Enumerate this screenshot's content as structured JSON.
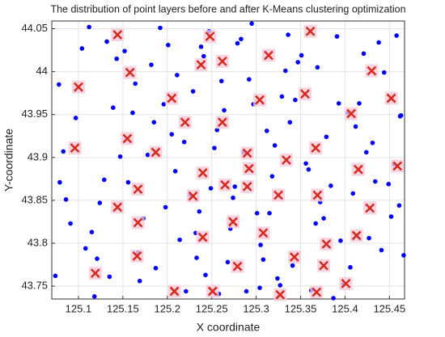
{
  "chart_data": {
    "type": "scatter",
    "title": "The distribution of point layers before and after K-Means clustering optimization",
    "xlabel": "X coordinate",
    "ylabel": "Y-coordinate",
    "xlim": [
      125.07,
      125.467
    ],
    "ylim": [
      43.735,
      44.059
    ],
    "xticks": [
      125.1,
      125.15,
      125.2,
      125.25,
      125.3,
      125.35,
      125.4,
      125.45
    ],
    "yticks": [
      43.75,
      43.8,
      43.85,
      43.9,
      43.95,
      44,
      44.05
    ],
    "grid": true,
    "series": [
      {
        "color": "#0000ff",
        "marker": "dot",
        "x": [
          125.112,
          125.135,
          125.178,
          125.201,
          125.232,
          125.264,
          125.289,
          125.318,
          125.347,
          125.376,
          125.412,
          125.441,
          125.078,
          125.124,
          125.152,
          125.187,
          125.219,
          125.247,
          125.276,
          125.305,
          125.338,
          125.369,
          125.398,
          125.455,
          125.091,
          125.143,
          125.167,
          125.196,
          125.226,
          125.258,
          125.283,
          125.312,
          125.341,
          125.384,
          125.421,
          125.462,
          125.083,
          125.118,
          125.161,
          125.209,
          125.238,
          125.271,
          125.297,
          125.327,
          125.356,
          125.391,
          125.427,
          125.449,
          125.104,
          125.129,
          125.173,
          125.192,
          125.243,
          125.253,
          125.301,
          125.333,
          125.362,
          125.403,
          125.434,
          125.466,
          125.074,
          125.139,
          125.156,
          125.214,
          125.229,
          125.279,
          125.308,
          125.321,
          125.351,
          125.387,
          125.416,
          125.458,
          125.097,
          125.121,
          125.182,
          125.205,
          125.236,
          125.268,
          125.292,
          125.336,
          125.367,
          125.395,
          125.438,
          125.452,
          125.086,
          125.147,
          125.169,
          125.198,
          125.249,
          125.261,
          125.286,
          125.315,
          125.344,
          125.379,
          125.409,
          125.463,
          125.108,
          125.132,
          125.164,
          125.221,
          125.241,
          125.274,
          125.304,
          125.329,
          125.359,
          125.406,
          125.431,
          125.444,
          125.079,
          125.115,
          125.185,
          125.211,
          125.233,
          125.256,
          125.295,
          125.324,
          125.372,
          125.393,
          125.424,
          125.461
        ],
        "values": [
          44.052,
          43.761,
          43.903,
          44.031,
          43.812,
          43.955,
          43.744,
          43.878,
          44.011,
          43.829,
          43.936,
          43.792,
          43.985,
          43.847,
          44.024,
          43.771,
          43.918,
          44.047,
          43.866,
          43.798,
          43.941,
          44.005,
          43.752,
          43.892,
          43.823,
          44.015,
          43.789,
          43.962,
          43.856,
          43.741,
          44.038,
          43.931,
          43.774,
          43.867,
          44.021,
          43.948,
          43.907,
          43.738,
          43.952,
          43.884,
          44.029,
          43.817,
          43.962,
          43.751,
          43.893,
          44.041,
          43.806,
          43.869,
          44.027,
          43.874,
          43.829,
          44.051,
          43.763,
          43.911,
          43.835,
          44.001,
          43.745,
          43.952,
          43.872,
          43.786,
          43.762,
          43.958,
          43.871,
          43.804,
          43.977,
          44.033,
          43.781,
          43.914,
          44.019,
          43.736,
          43.963,
          44.042,
          43.946,
          43.782,
          44.008,
          43.927,
          43.837,
          43.778,
          43.991,
          44.043,
          43.823,
          43.803,
          44.034,
          43.831,
          43.851,
          43.901,
          43.756,
          43.842,
          43.864,
          43.989,
          43.906,
          43.835,
          43.967,
          43.924,
          43.858,
          43.949,
          43.794,
          44.035,
          43.986,
          43.744,
          44.018,
          43.853,
          43.748,
          43.971,
          43.886,
          43.772,
          43.917,
          43.999,
          43.871,
          43.813,
          43.941,
          43.996,
          43.783,
          43.932,
          44.056,
          43.759,
          43.848,
          43.963,
          43.906,
          43.844
        ]
      },
      {
        "color": "#d42a1e",
        "marker": "x",
        "x": [
          125.144,
          125.248,
          125.361,
          125.314,
          125.262,
          125.238,
          125.1,
          125.158,
          125.43,
          125.205,
          125.304,
          125.355,
          125.452,
          125.407,
          125.22,
          125.262,
          125.096,
          125.155,
          125.187,
          125.367,
          125.29,
          125.459,
          125.292,
          125.334,
          125.415,
          125.24,
          125.167,
          125.265,
          125.29,
          125.229,
          125.144,
          125.325,
          125.369,
          125.428,
          125.167,
          125.274,
          125.308,
          125.24,
          125.413,
          125.166,
          125.379,
          125.343,
          125.279,
          125.119,
          125.376,
          125.208,
          125.251,
          125.327,
          125.368,
          125.401
        ],
        "values": [
          44.043,
          44.041,
          44.047,
          44.019,
          44.012,
          44.008,
          43.982,
          43.999,
          44.001,
          43.969,
          43.967,
          43.974,
          43.969,
          43.951,
          43.941,
          43.941,
          43.911,
          43.922,
          43.906,
          43.911,
          43.905,
          43.89,
          43.887,
          43.897,
          43.886,
          43.882,
          43.863,
          43.868,
          43.866,
          43.855,
          43.842,
          43.856,
          43.856,
          43.841,
          43.824,
          43.825,
          43.812,
          43.807,
          43.809,
          43.785,
          43.799,
          43.784,
          43.773,
          43.765,
          43.774,
          43.744,
          43.744,
          43.74,
          43.743,
          43.753
        ]
      }
    ]
  }
}
